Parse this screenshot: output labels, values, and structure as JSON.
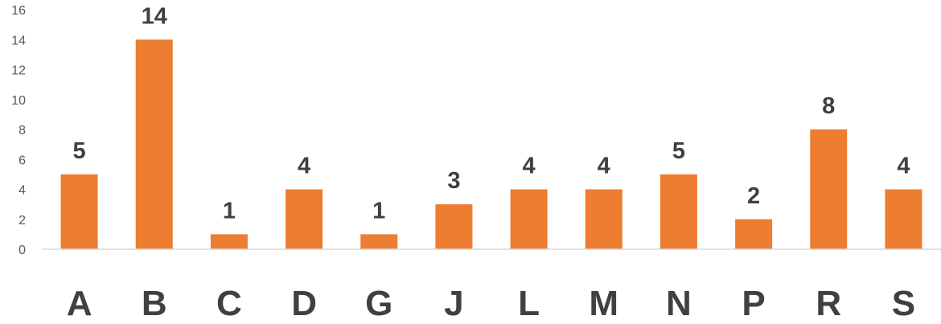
{
  "chart_data": {
    "type": "bar",
    "categories": [
      "A",
      "B",
      "C",
      "D",
      "G",
      "J",
      "L",
      "M",
      "N",
      "P",
      "R",
      "S"
    ],
    "values": [
      5,
      14,
      1,
      4,
      1,
      3,
      4,
      4,
      5,
      2,
      8,
      4
    ],
    "ylim": [
      0,
      16
    ],
    "yticks": [
      0,
      2,
      4,
      6,
      8,
      10,
      12,
      14,
      16
    ],
    "grid": false,
    "legend": "none",
    "data_labels": true,
    "colors": {
      "bar": "#ED7D31",
      "axis": "#D9D9D9",
      "tick_text": "#595959",
      "label_text": "#404040"
    }
  }
}
